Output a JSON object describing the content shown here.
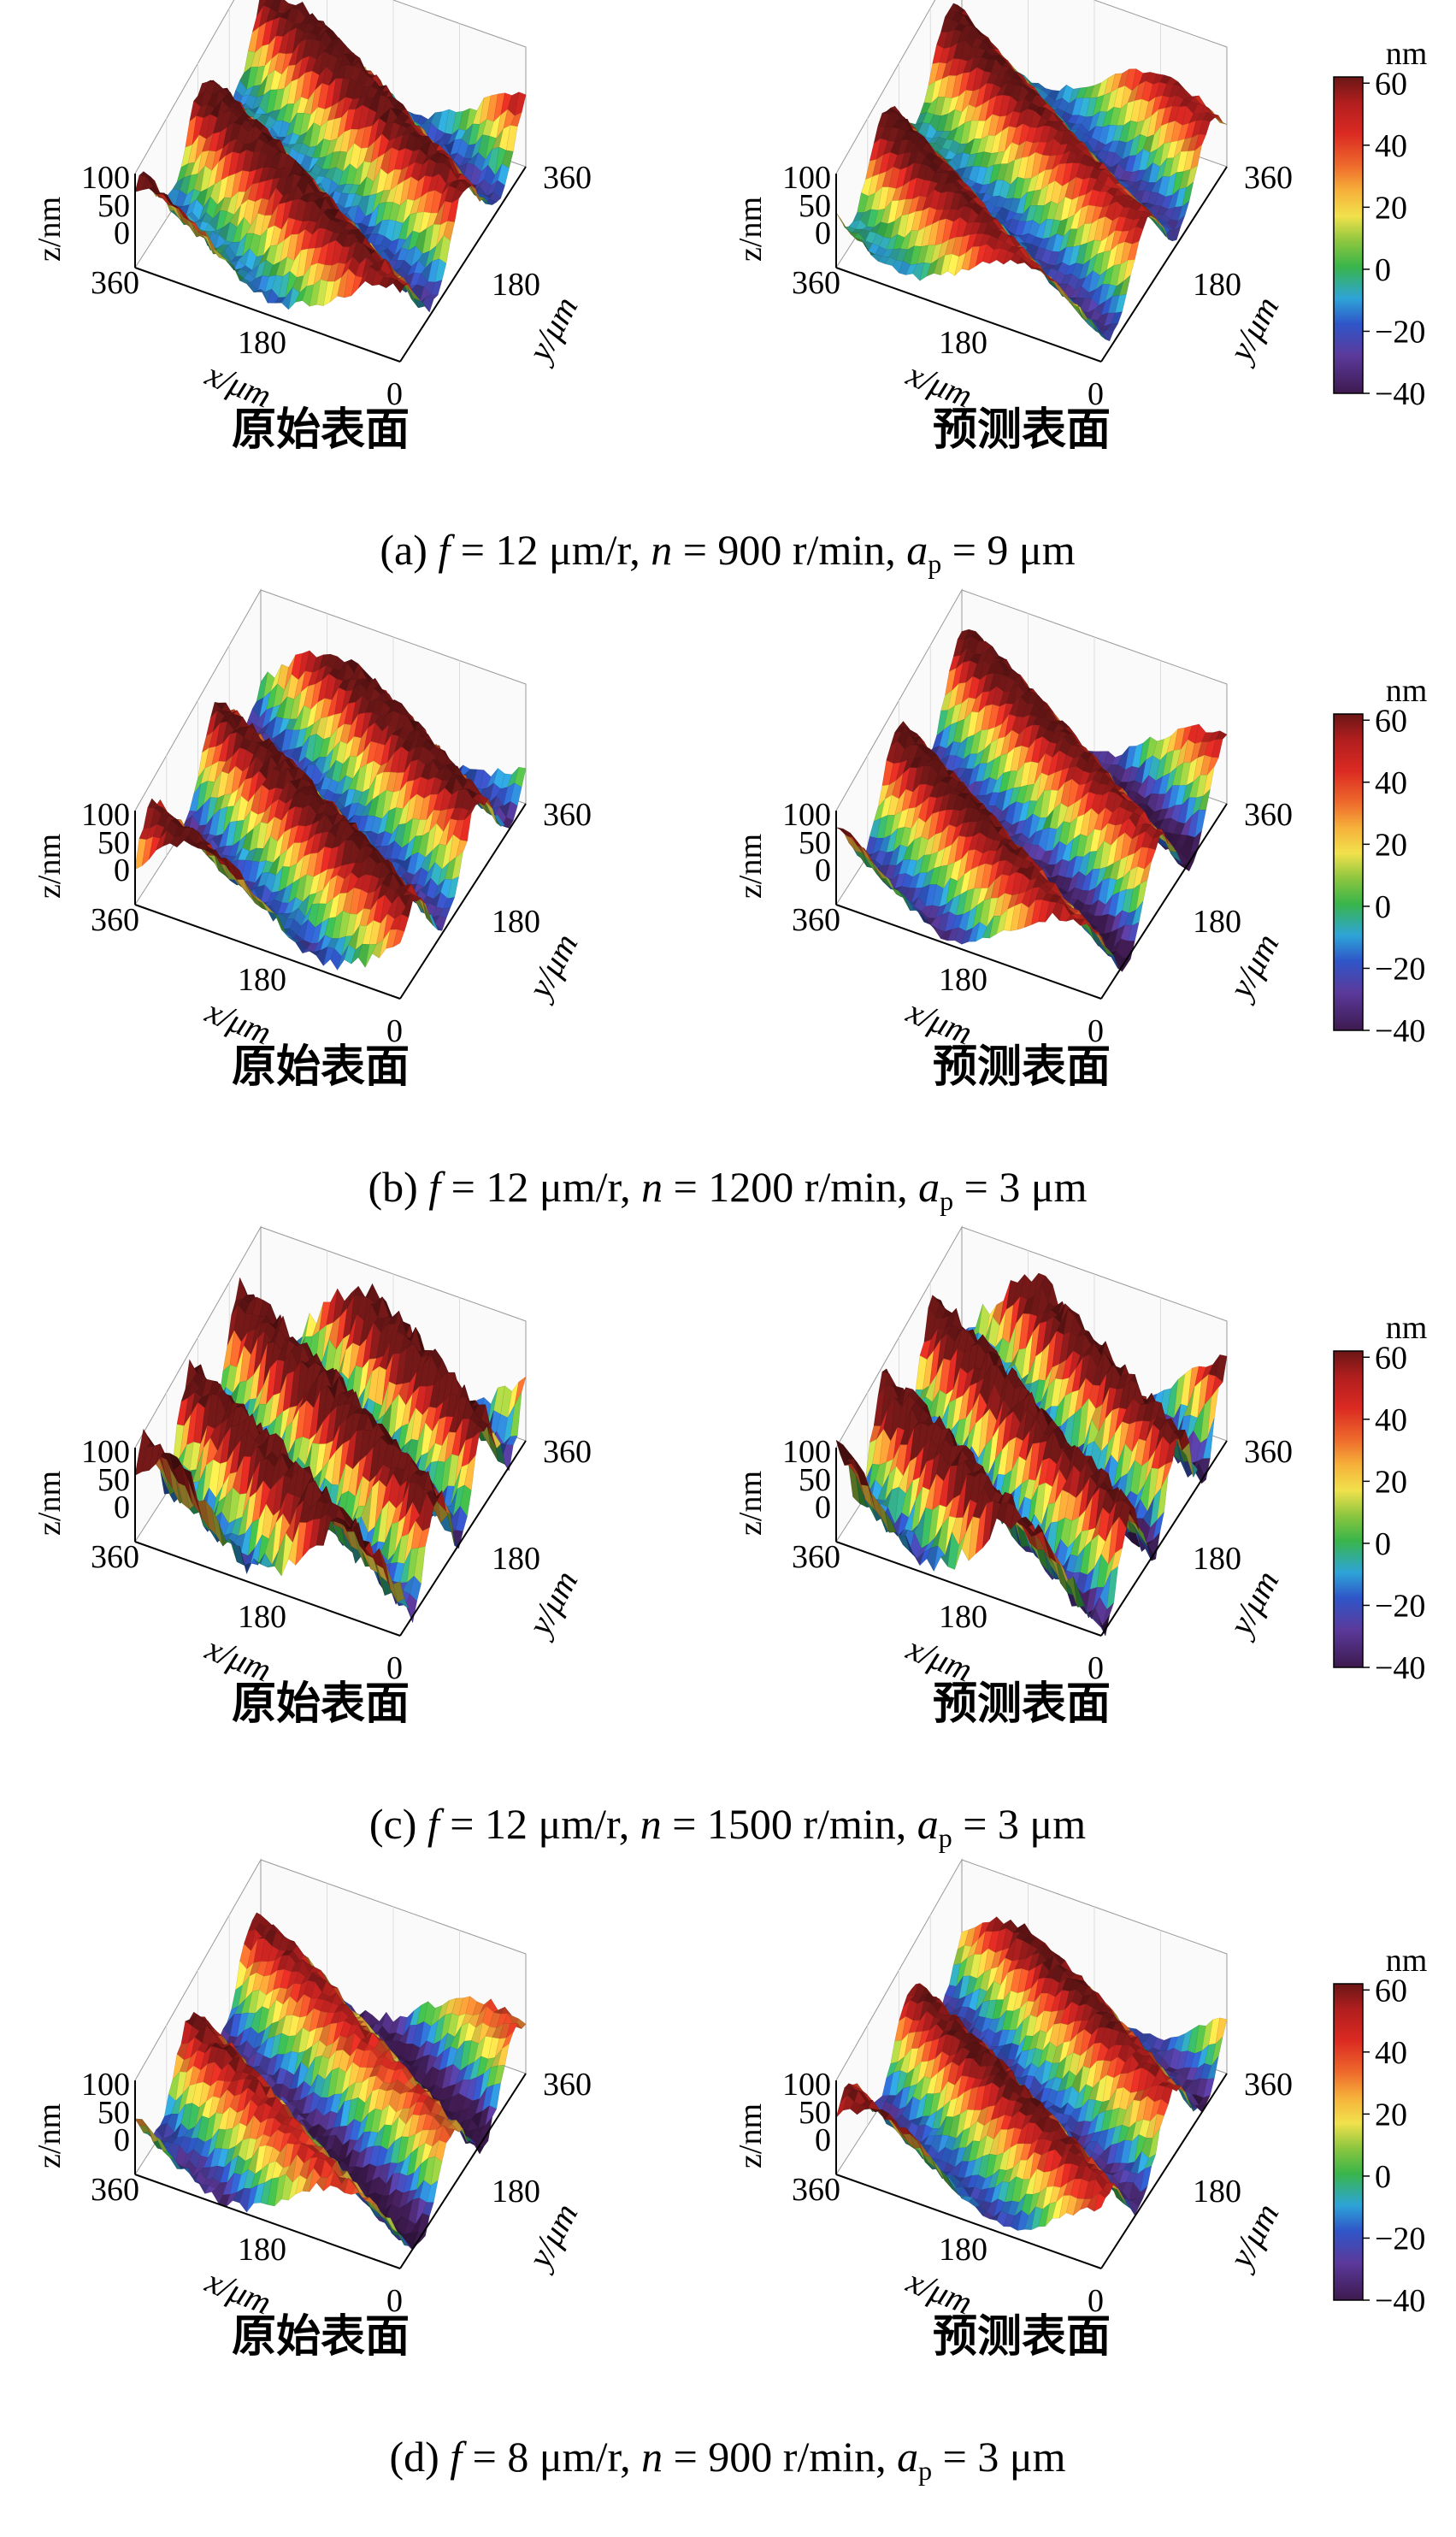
{
  "chart_data": {
    "type": "surface3d",
    "colorscale": {
      "unit_label": "nm",
      "ticks": [
        "60",
        "40",
        "20",
        "0",
        "-20",
        "-40"
      ],
      "min": -40,
      "max": 62,
      "stops": [
        "#3e1a4f",
        "#5b3a9c",
        "#2f56c8",
        "#2ea4d8",
        "#39b54a",
        "#8cc63f",
        "#f1e14c",
        "#f6b13a",
        "#ee6a2c",
        "#db2a22",
        "#b01e1e",
        "#6b1616"
      ]
    },
    "axes": {
      "z_label": "z/nm",
      "z_ticks": [
        "100",
        "50",
        "0"
      ],
      "x_label": "x/μm",
      "x_ticks": [
        "360",
        "180",
        "0"
      ],
      "y_label": "y/μm",
      "y_ticks": [
        "360",
        "180"
      ]
    },
    "panel_labels": {
      "left": "原始表面",
      "right": "预测表面"
    },
    "rows": [
      {
        "id": "a",
        "caption": {
          "prefix": "(a) ",
          "f_var": "f",
          "f_val": " = 12 μm/r, ",
          "n_var": "n",
          "n_val": " = 900 r/min, ",
          "a_var": "a",
          "a_sub": "p",
          "a_val": " = 9 μm"
        },
        "surfaces": [
          {
            "panel": "原始表面",
            "ridges": 3,
            "amplitude_nm": 45,
            "offset_nm": 20,
            "phase": 0.2,
            "noise": 0.35
          },
          {
            "panel": "预测表面",
            "ridges": 3,
            "amplitude_nm": 42,
            "offset_nm": 22,
            "phase": 0.5,
            "noise": 0.25
          }
        ]
      },
      {
        "id": "b",
        "caption": {
          "prefix": "(b) ",
          "f_var": "f",
          "f_val": " = 12 μm/r, ",
          "n_var": "n",
          "n_val": " = 1200 r/min, ",
          "a_var": "a",
          "a_sub": "p",
          "a_val": " = 3 μm"
        },
        "surfaces": [
          {
            "panel": "原始表面",
            "ridges": 3,
            "amplitude_nm": 48,
            "offset_nm": 15,
            "phase": 0.0,
            "noise": 0.35
          },
          {
            "panel": "预测表面",
            "ridges": 3,
            "amplitude_nm": 50,
            "offset_nm": 12,
            "phase": 0.3,
            "noise": 0.25
          }
        ]
      },
      {
        "id": "c",
        "caption": {
          "prefix": "(c) ",
          "f_var": "f",
          "f_val": " = 12 μm/r, ",
          "n_var": "n",
          "n_val": " = 1500 r/min, ",
          "a_var": "a",
          "a_sub": "p",
          "a_val": " = 3 μm"
        },
        "surfaces": [
          {
            "panel": "原始表面",
            "ridges": 4,
            "amplitude_nm": 55,
            "offset_nm": 25,
            "phase": 0.1,
            "noise": 0.55
          },
          {
            "panel": "预测表面",
            "ridges": 4,
            "amplitude_nm": 55,
            "offset_nm": 22,
            "phase": 0.25,
            "noise": 0.5
          }
        ]
      },
      {
        "id": "d",
        "caption": {
          "prefix": "(d) ",
          "f_var": "f",
          "f_val": " = 8 μm/r, ",
          "n_var": "n",
          "n_val": " = 900 r/min, ",
          "a_var": "a",
          "a_sub": "p",
          "a_val": " = 3 μm"
        },
        "surfaces": [
          {
            "panel": "原始表面",
            "ridges": 3,
            "amplitude_nm": 45,
            "offset_nm": 5,
            "phase": 0.4,
            "noise": 0.35
          },
          {
            "panel": "预测表面",
            "ridges": 3,
            "amplitude_nm": 45,
            "offset_nm": 10,
            "phase": 0.1,
            "noise": 0.3
          }
        ]
      }
    ]
  }
}
